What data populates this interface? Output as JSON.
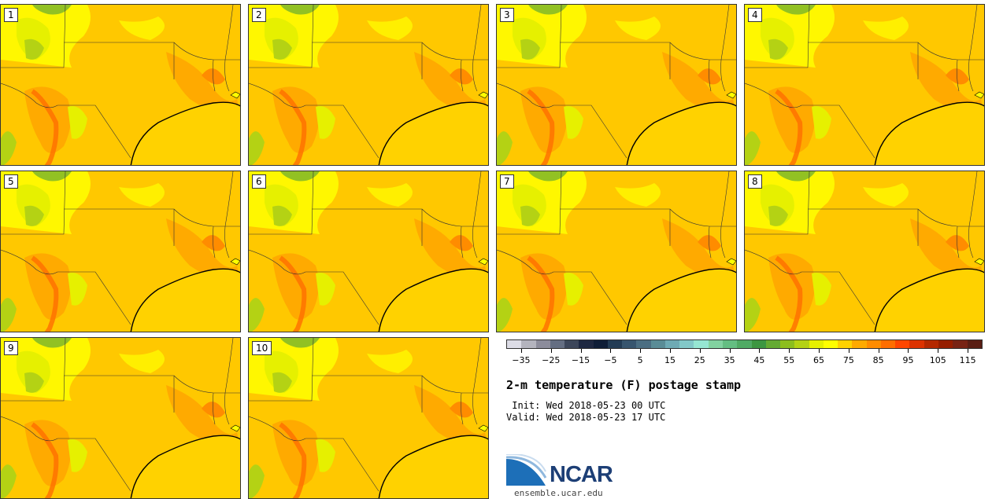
{
  "panels": [
    {
      "label": "1"
    },
    {
      "label": "2"
    },
    {
      "label": "3"
    },
    {
      "label": "4"
    },
    {
      "label": "5"
    },
    {
      "label": "6"
    },
    {
      "label": "7"
    },
    {
      "label": "8"
    },
    {
      "label": "9"
    },
    {
      "label": "10"
    }
  ],
  "colorbar": {
    "colors": [
      "#dcdce6",
      "#b4b4be",
      "#8c8c9b",
      "#646e82",
      "#3c465a",
      "#1e2841",
      "#0f1e37",
      "#233c55",
      "#37556e",
      "#4b6e82",
      "#5a8c96",
      "#6eaab4",
      "#82c8c8",
      "#96e6d2",
      "#82d2a0",
      "#64be82",
      "#50aa64",
      "#3c9641",
      "#64aa32",
      "#8cbe1e",
      "#b4d214",
      "#e6f000",
      "#ffff00",
      "#ffd200",
      "#ffaa00",
      "#ff8c00",
      "#ff6e00",
      "#ff4600",
      "#dc3200",
      "#b42800",
      "#961e00",
      "#782314",
      "#5a1e14"
    ],
    "ticks": [
      "−35",
      "−25",
      "−15",
      "−5",
      "5",
      "15",
      "25",
      "35",
      "45",
      "55",
      "65",
      "75",
      "85",
      "95",
      "105",
      "115"
    ]
  },
  "title": "2-m temperature (F) postage stamp",
  "init": " Init: Wed 2018-05-23 00 UTC",
  "valid": "Valid: Wed 2018-05-23 17 UTC",
  "logo": {
    "text": "NCAR",
    "url": "ensemble.ucar.edu"
  }
}
